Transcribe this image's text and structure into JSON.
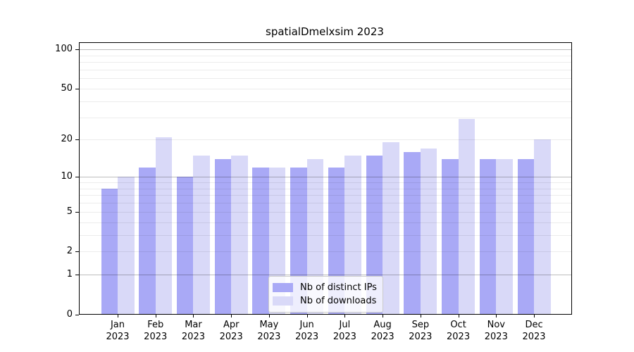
{
  "chart_data": {
    "type": "bar",
    "title": "spatialDmelxsim 2023",
    "categories": [
      "Jan",
      "Feb",
      "Mar",
      "Apr",
      "May",
      "Jun",
      "Jul",
      "Aug",
      "Sep",
      "Oct",
      "Nov",
      "Dec"
    ],
    "x_sublabel": "2023",
    "series": [
      {
        "name": "Nb of distinct IPs",
        "color": "#a9a9f6",
        "values": [
          8,
          12,
          10,
          14,
          12,
          12,
          12,
          15,
          16,
          14,
          14,
          14
        ]
      },
      {
        "name": "Nb of downloads",
        "color": "#d9d9f8",
        "values": [
          10,
          21,
          15,
          15,
          12,
          14,
          15,
          19,
          17,
          29,
          14,
          20
        ]
      }
    ],
    "y_axis": {
      "scale": "log1p",
      "ticks": [
        100,
        50,
        20,
        10,
        5,
        2,
        1,
        0
      ],
      "minor_gridlines": [
        2,
        3,
        4,
        5,
        6,
        7,
        8,
        9,
        20,
        30,
        40,
        50,
        60,
        70,
        80,
        90
      ],
      "decade_gridlines": [
        1,
        10,
        100
      ],
      "ylim": [
        0,
        112
      ]
    },
    "legend_position": "lower center",
    "grid_on": true
  }
}
